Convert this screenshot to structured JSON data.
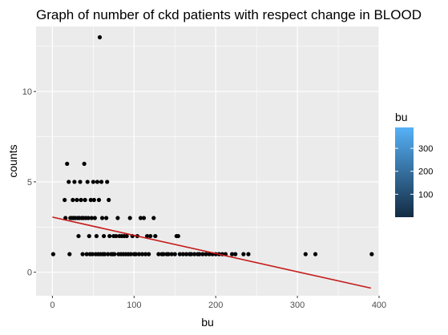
{
  "chart_data": {
    "type": "scatter",
    "title": "Graph of number of ckd patients with respect change in BLOOD",
    "xlabel": "bu",
    "ylabel": "counts",
    "xlim": [
      -20,
      400
    ],
    "ylim": [
      -1.3,
      13.6
    ],
    "x_ticks": [
      0,
      100,
      200,
      300,
      400
    ],
    "y_ticks": [
      0,
      5,
      10
    ],
    "x_minor_ticks": [
      50,
      150,
      250,
      350
    ],
    "y_minor_ticks": [
      2.5,
      7.5,
      12.5
    ],
    "x_tick_labels": [
      "0",
      "100",
      "200",
      "300",
      "400"
    ],
    "y_tick_labels": [
      "0",
      "5",
      "10"
    ],
    "grid": true,
    "panel_background": "#ebebeb",
    "grid_color": "#ffffff",
    "point_color": "#000000",
    "points": [
      {
        "x": 1,
        "y": 1
      },
      {
        "x": 15,
        "y": 4
      },
      {
        "x": 16,
        "y": 3
      },
      {
        "x": 18,
        "y": 6
      },
      {
        "x": 20,
        "y": 5
      },
      {
        "x": 21,
        "y": 1
      },
      {
        "x": 22,
        "y": 3
      },
      {
        "x": 24,
        "y": 3
      },
      {
        "x": 25,
        "y": 4
      },
      {
        "x": 26,
        "y": 3
      },
      {
        "x": 27,
        "y": 5
      },
      {
        "x": 28,
        "y": 3
      },
      {
        "x": 30,
        "y": 4
      },
      {
        "x": 31,
        "y": 3
      },
      {
        "x": 32,
        "y": 2
      },
      {
        "x": 33,
        "y": 3
      },
      {
        "x": 34,
        "y": 5
      },
      {
        "x": 35,
        "y": 4
      },
      {
        "x": 36,
        "y": 3
      },
      {
        "x": 37,
        "y": 1
      },
      {
        "x": 38,
        "y": 3
      },
      {
        "x": 39,
        "y": 6
      },
      {
        "x": 40,
        "y": 4
      },
      {
        "x": 41,
        "y": 3
      },
      {
        "x": 42,
        "y": 1
      },
      {
        "x": 43,
        "y": 5
      },
      {
        "x": 44,
        "y": 3
      },
      {
        "x": 45,
        "y": 2
      },
      {
        "x": 46,
        "y": 1
      },
      {
        "x": 47,
        "y": 4
      },
      {
        "x": 48,
        "y": 3
      },
      {
        "x": 49,
        "y": 1
      },
      {
        "x": 50,
        "y": 5
      },
      {
        "x": 51,
        "y": 4
      },
      {
        "x": 52,
        "y": 3
      },
      {
        "x": 53,
        "y": 1
      },
      {
        "x": 54,
        "y": 2
      },
      {
        "x": 55,
        "y": 5
      },
      {
        "x": 56,
        "y": 1
      },
      {
        "x": 57,
        "y": 4
      },
      {
        "x": 58,
        "y": 13
      },
      {
        "x": 59,
        "y": 1
      },
      {
        "x": 60,
        "y": 5
      },
      {
        "x": 61,
        "y": 3
      },
      {
        "x": 62,
        "y": 1
      },
      {
        "x": 63,
        "y": 2
      },
      {
        "x": 64,
        "y": 1
      },
      {
        "x": 66,
        "y": 3
      },
      {
        "x": 67,
        "y": 5
      },
      {
        "x": 68,
        "y": 1
      },
      {
        "x": 69,
        "y": 4
      },
      {
        "x": 70,
        "y": 2
      },
      {
        "x": 72,
        "y": 1
      },
      {
        "x": 74,
        "y": 1
      },
      {
        "x": 75,
        "y": 2
      },
      {
        "x": 76,
        "y": 1
      },
      {
        "x": 78,
        "y": 2
      },
      {
        "x": 80,
        "y": 3
      },
      {
        "x": 81,
        "y": 1
      },
      {
        "x": 82,
        "y": 2
      },
      {
        "x": 84,
        "y": 1
      },
      {
        "x": 85,
        "y": 2
      },
      {
        "x": 87,
        "y": 1
      },
      {
        "x": 88,
        "y": 2
      },
      {
        "x": 90,
        "y": 1
      },
      {
        "x": 91,
        "y": 2
      },
      {
        "x": 93,
        "y": 1
      },
      {
        "x": 95,
        "y": 3
      },
      {
        "x": 96,
        "y": 1
      },
      {
        "x": 98,
        "y": 2
      },
      {
        "x": 100,
        "y": 1
      },
      {
        "x": 102,
        "y": 1
      },
      {
        "x": 104,
        "y": 2
      },
      {
        "x": 106,
        "y": 1
      },
      {
        "x": 108,
        "y": 3
      },
      {
        "x": 110,
        "y": 1
      },
      {
        "x": 112,
        "y": 3
      },
      {
        "x": 114,
        "y": 1
      },
      {
        "x": 116,
        "y": 2
      },
      {
        "x": 118,
        "y": 1
      },
      {
        "x": 120,
        "y": 2
      },
      {
        "x": 124,
        "y": 3
      },
      {
        "x": 126,
        "y": 2
      },
      {
        "x": 130,
        "y": 1
      },
      {
        "x": 134,
        "y": 1
      },
      {
        "x": 136,
        "y": 1
      },
      {
        "x": 140,
        "y": 1
      },
      {
        "x": 142,
        "y": 1
      },
      {
        "x": 146,
        "y": 1
      },
      {
        "x": 150,
        "y": 1
      },
      {
        "x": 152,
        "y": 2
      },
      {
        "x": 154,
        "y": 2
      },
      {
        "x": 156,
        "y": 1
      },
      {
        "x": 160,
        "y": 1
      },
      {
        "x": 164,
        "y": 1
      },
      {
        "x": 168,
        "y": 1
      },
      {
        "x": 170,
        "y": 1
      },
      {
        "x": 174,
        "y": 1
      },
      {
        "x": 178,
        "y": 1
      },
      {
        "x": 180,
        "y": 1
      },
      {
        "x": 184,
        "y": 1
      },
      {
        "x": 188,
        "y": 1
      },
      {
        "x": 192,
        "y": 1
      },
      {
        "x": 196,
        "y": 1
      },
      {
        "x": 200,
        "y": 1
      },
      {
        "x": 204,
        "y": 1
      },
      {
        "x": 208,
        "y": 1
      },
      {
        "x": 212,
        "y": 1
      },
      {
        "x": 220,
        "y": 1
      },
      {
        "x": 224,
        "y": 1
      },
      {
        "x": 234,
        "y": 1
      },
      {
        "x": 240,
        "y": 1
      },
      {
        "x": 310,
        "y": 1
      },
      {
        "x": 322,
        "y": 1
      },
      {
        "x": 391,
        "y": 1
      }
    ],
    "trend_line": {
      "color": "#c41a1a",
      "x": [
        0,
        390
      ],
      "y": [
        3.05,
        -0.88
      ]
    },
    "legend": {
      "title": "bu",
      "placement": "right",
      "type": "colorbar",
      "range": [
        0,
        391
      ],
      "ticks": [
        100,
        200,
        300
      ],
      "tick_labels": [
        "100",
        "200",
        "300"
      ],
      "color_low": "#132b43",
      "color_high": "#56b1f7"
    }
  }
}
